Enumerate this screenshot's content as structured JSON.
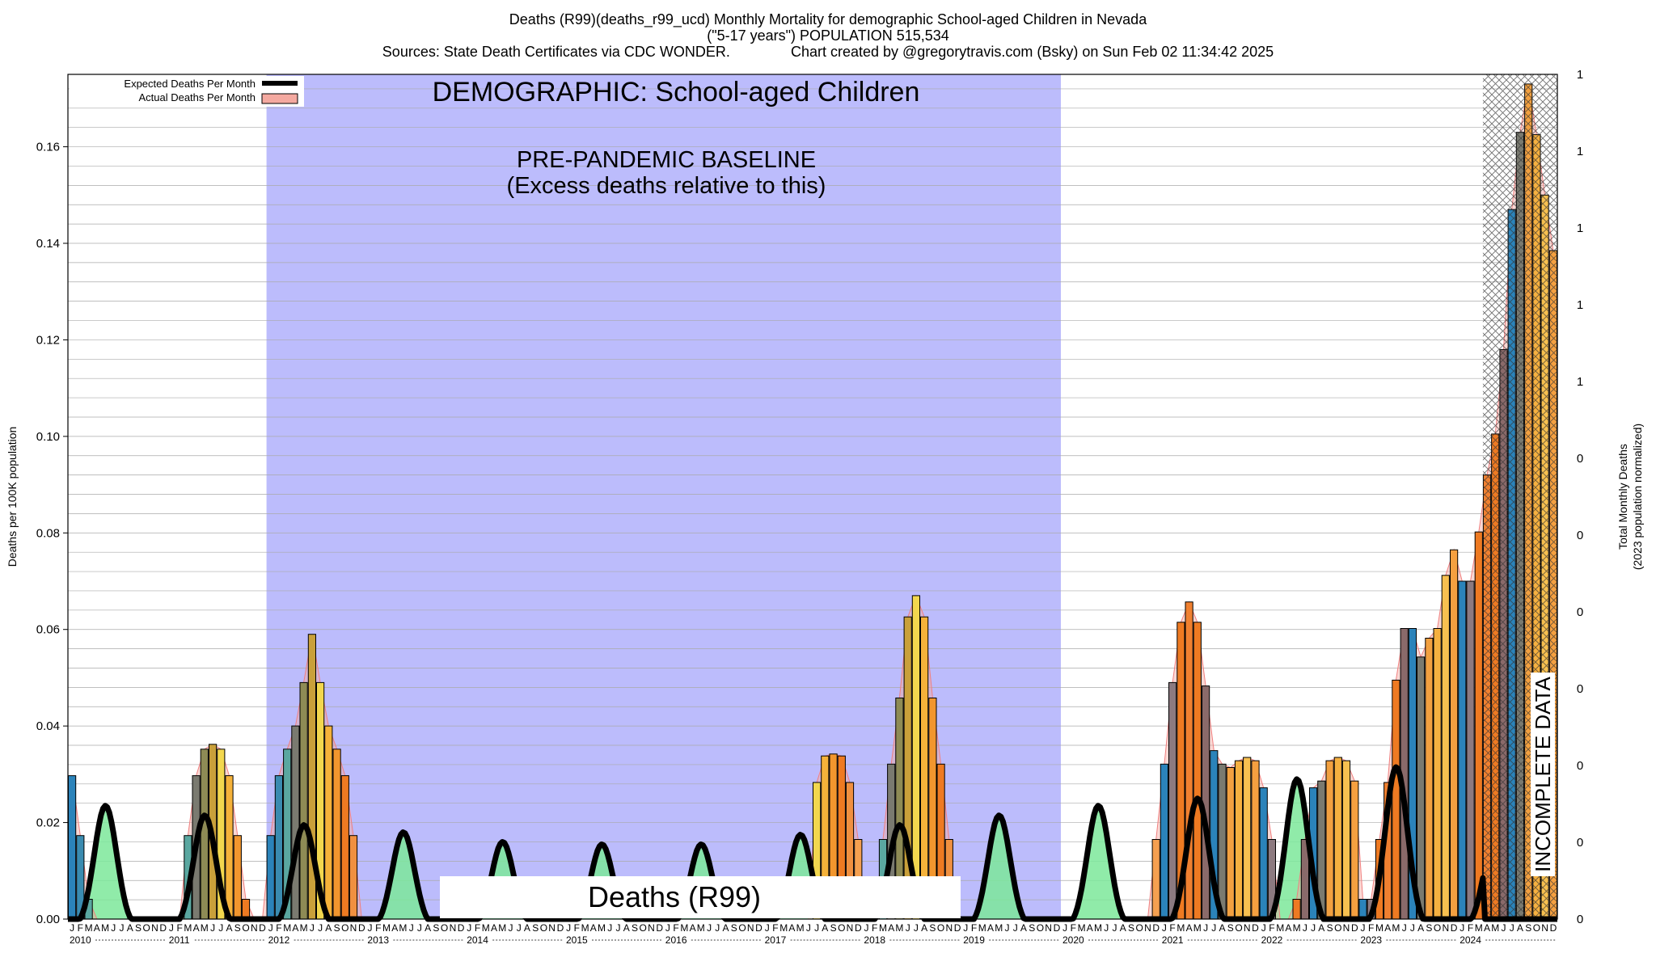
{
  "header": {
    "line1": "Deaths (R99)(deaths_r99_ucd) Monthly Mortality for demographic School-aged Children in Nevada",
    "line2": "(\"5-17 years\") POPULATION 515,534",
    "line3": "Sources: State Death Certificates via CDC WONDER.               Chart created by @gregorytravis.com (Bsky) on Sun Feb 02 11:34:42 2025"
  },
  "chart_data": {
    "type": "bar",
    "ylabel": "Deaths per 100K population",
    "y2label_line1": "Total Monthly Deaths",
    "y2label_line2": "(2023 population normalized)",
    "ylim": [
      0,
      0.175
    ],
    "y_ticks": [
      "0.00",
      "0.02",
      "0.04",
      "0.06",
      "0.08",
      "0.10",
      "0.12",
      "0.14",
      "0.16"
    ],
    "y2_ticks": [
      "0",
      "0",
      "0",
      "0",
      "0",
      "0",
      "0",
      "1",
      "1",
      "1",
      "1",
      "1"
    ],
    "years": [
      "2010",
      "2011",
      "2012",
      "2013",
      "2014",
      "2015",
      "2016",
      "2017",
      "2018",
      "2019",
      "2020",
      "2021",
      "2022",
      "2023",
      "2024"
    ],
    "month_letters": [
      "J",
      "F",
      "M",
      "A",
      "M",
      "J",
      "J",
      "A",
      "S",
      "O",
      "N",
      "D"
    ],
    "legend": [
      {
        "label": "Expected Deaths Per Month",
        "color": "#000000"
      },
      {
        "label": "Actual Deaths Per Month",
        "color": "#f4a9a0"
      }
    ],
    "annotations": {
      "demographic": "DEMOGRAPHIC: School-aged Children",
      "baseline_line1": "PRE-PANDEMIC BASELINE",
      "baseline_line2": "(Excess deaths relative to this)",
      "cause_box": "Deaths (R99)",
      "incomplete": "INCOMPLETE DATA"
    },
    "baseline_period": [
      "2012-01",
      "2019-12"
    ],
    "incomplete_period": [
      "2024-04",
      "2024-12"
    ],
    "series": [
      {
        "name": "Actual Deaths Per Month",
        "values": [
          0.0297,
          0.0173,
          0.0041,
          0,
          0,
          0,
          0,
          0,
          0,
          0,
          0,
          0,
          0,
          0,
          0.0173,
          0.0297,
          0.0352,
          0.0362,
          0.0352,
          0.0297,
          0.0173,
          0.0041,
          0,
          0,
          0.0173,
          0.0297,
          0.0352,
          0.04,
          0.049,
          0.059,
          0.049,
          0.04,
          0.0352,
          0.0297,
          0.0173,
          0,
          0,
          0,
          0,
          0,
          0,
          0,
          0,
          0,
          0,
          0,
          0,
          0,
          0,
          0,
          0,
          0,
          0,
          0,
          0,
          0,
          0,
          0,
          0,
          0,
          0,
          0,
          0,
          0,
          0,
          0,
          0,
          0,
          0,
          0,
          0,
          0,
          0,
          0,
          0,
          0,
          0,
          0,
          0,
          0,
          0,
          0,
          0,
          0,
          0,
          0,
          0,
          0,
          0,
          0,
          0.0283,
          0.0338,
          0.0342,
          0.0338,
          0.0283,
          0.0165,
          0,
          0,
          0.0165,
          0.0321,
          0.0458,
          0.0626,
          0.067,
          0.0626,
          0.0458,
          0.0321,
          0.0165,
          0,
          0,
          0,
          0,
          0,
          0,
          0,
          0,
          0,
          0,
          0,
          0,
          0,
          0,
          0,
          0,
          0,
          0,
          0,
          0,
          0,
          0,
          0,
          0,
          0.0165,
          0.0321,
          0.049,
          0.0615,
          0.0657,
          0.0615,
          0.0483,
          0.0349,
          0.0321,
          0.0314,
          0.0328,
          0.0335,
          0.0328,
          0.0272,
          0.0165,
          0,
          0,
          0.0041,
          0.0165,
          0.0272,
          0.0286,
          0.0328,
          0.0335,
          0.0328,
          0.0286,
          0.0041,
          0.0041,
          0.0165,
          0.0283,
          0.0495,
          0.0602,
          0.0602,
          0.0543,
          0.0582,
          0.0602,
          0.0712,
          0.0765,
          0.07,
          0.07,
          0.0802,
          0.092,
          0.1005,
          0.118,
          0.147,
          0.163,
          0.173,
          0.1625,
          0.15,
          0.1385
        ]
      }
    ]
  }
}
